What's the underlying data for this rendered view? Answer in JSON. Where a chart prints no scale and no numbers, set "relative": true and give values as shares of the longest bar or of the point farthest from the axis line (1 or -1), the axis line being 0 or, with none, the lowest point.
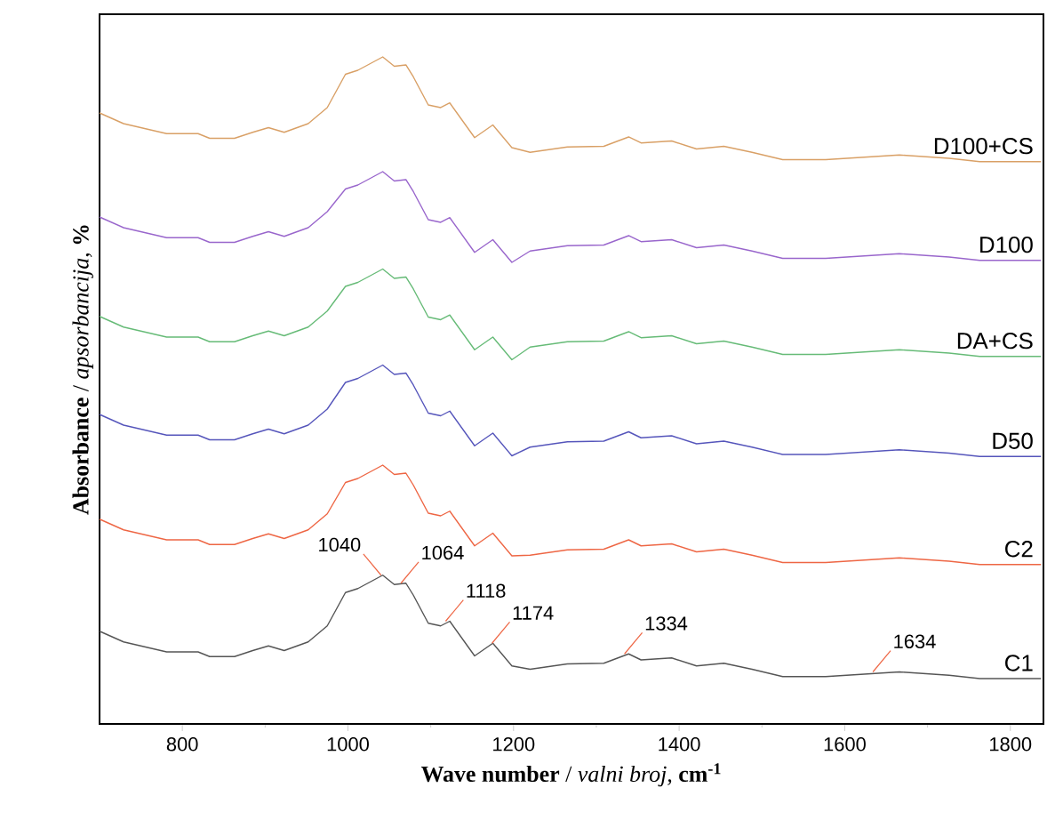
{
  "chart_data": {
    "type": "line",
    "relative": true,
    "xlabel": "**Wave number** / *valni broj,* **cm$^{-1}$**",
    "ylabel": "**Absorbance** / *apsorbancija,* **%**",
    "x": [
      700,
      729,
      781,
      819,
      833,
      863,
      885,
      904,
      923,
      952,
      975,
      997,
      1012,
      1030,
      1042,
      1056,
      1070,
      1079,
      1097,
      1112,
      1123,
      1138,
      1153,
      1175,
      1198,
      1220,
      1265,
      1309,
      1339,
      1354,
      1391,
      1421,
      1454,
      1488,
      1525,
      1577,
      1666,
      1726,
      1763,
      1837
    ],
    "xlim": [
      700,
      1840
    ],
    "xticks": [
      800,
      1000,
      1200,
      1400,
      1600,
      1800
    ],
    "grid": false,
    "marker": "none",
    "line_style": "solid",
    "series": [
      {
        "name": "C1",
        "color": "#555555",
        "values": [
          0.139,
          0.123,
          0.108,
          0.108,
          0.101,
          0.101,
          0.11,
          0.117,
          0.11,
          0.123,
          0.147,
          0.197,
          0.203,
          0.215,
          0.223,
          0.209,
          0.211,
          0.193,
          0.151,
          0.147,
          0.154,
          0.128,
          0.102,
          0.121,
          0.087,
          0.082,
          0.09,
          0.091,
          0.105,
          0.096,
          0.099,
          0.087,
          0.091,
          0.082,
          0.071,
          0.071,
          0.078,
          0.073,
          0.068,
          0.068
        ]
      },
      {
        "name": "C2",
        "color": "#ee6644",
        "values": [
          0.307,
          0.291,
          0.276,
          0.276,
          0.269,
          0.269,
          0.278,
          0.285,
          0.278,
          0.291,
          0.315,
          0.362,
          0.368,
          0.38,
          0.388,
          0.374,
          0.376,
          0.358,
          0.316,
          0.312,
          0.319,
          0.293,
          0.267,
          0.286,
          0.252,
          0.253,
          0.261,
          0.262,
          0.276,
          0.267,
          0.27,
          0.258,
          0.262,
          0.253,
          0.242,
          0.242,
          0.249,
          0.244,
          0.239,
          0.239
        ]
      },
      {
        "name": "D50",
        "color": "#5555bb",
        "values": [
          0.464,
          0.448,
          0.433,
          0.433,
          0.426,
          0.426,
          0.435,
          0.442,
          0.435,
          0.448,
          0.472,
          0.512,
          0.518,
          0.53,
          0.538,
          0.524,
          0.526,
          0.508,
          0.466,
          0.462,
          0.469,
          0.443,
          0.417,
          0.436,
          0.402,
          0.415,
          0.423,
          0.424,
          0.438,
          0.429,
          0.432,
          0.42,
          0.424,
          0.415,
          0.404,
          0.404,
          0.411,
          0.406,
          0.401,
          0.401
        ]
      },
      {
        "name": "DA+CS",
        "color": "#66bb77",
        "values": [
          0.611,
          0.595,
          0.58,
          0.58,
          0.573,
          0.573,
          0.582,
          0.589,
          0.582,
          0.595,
          0.619,
          0.656,
          0.662,
          0.674,
          0.682,
          0.668,
          0.67,
          0.652,
          0.61,
          0.606,
          0.613,
          0.587,
          0.561,
          0.58,
          0.546,
          0.565,
          0.573,
          0.574,
          0.588,
          0.579,
          0.582,
          0.57,
          0.574,
          0.565,
          0.554,
          0.554,
          0.561,
          0.556,
          0.551,
          0.551
        ]
      },
      {
        "name": "D100",
        "color": "#9966cc",
        "values": [
          0.76,
          0.744,
          0.729,
          0.729,
          0.722,
          0.722,
          0.731,
          0.738,
          0.731,
          0.744,
          0.768,
          0.802,
          0.808,
          0.82,
          0.828,
          0.814,
          0.816,
          0.798,
          0.756,
          0.752,
          0.759,
          0.733,
          0.707,
          0.726,
          0.692,
          0.709,
          0.717,
          0.718,
          0.732,
          0.723,
          0.726,
          0.714,
          0.718,
          0.709,
          0.698,
          0.698,
          0.705,
          0.7,
          0.695,
          0.695
        ]
      },
      {
        "name": "D100+CS",
        "color": "#d9a066",
        "values": [
          0.916,
          0.9,
          0.885,
          0.885,
          0.878,
          0.878,
          0.887,
          0.894,
          0.887,
          0.9,
          0.924,
          0.974,
          0.98,
          0.992,
          1.0,
          0.986,
          0.988,
          0.97,
          0.928,
          0.924,
          0.931,
          0.905,
          0.879,
          0.898,
          0.864,
          0.857,
          0.865,
          0.866,
          0.88,
          0.871,
          0.874,
          0.862,
          0.866,
          0.857,
          0.846,
          0.846,
          0.853,
          0.848,
          0.843,
          0.843
        ]
      }
    ],
    "annotations": [
      {
        "text": "1040",
        "x": 1040,
        "y": 0.223
      },
      {
        "text": "1064",
        "x": 1064,
        "y": 0.211
      },
      {
        "text": "1118",
        "x": 1118,
        "y": 0.154
      },
      {
        "text": "1174",
        "x": 1174,
        "y": 0.121
      },
      {
        "text": "1334",
        "x": 1334,
        "y": 0.105
      },
      {
        "text": "1634",
        "x": 1634,
        "y": 0.078
      }
    ]
  }
}
